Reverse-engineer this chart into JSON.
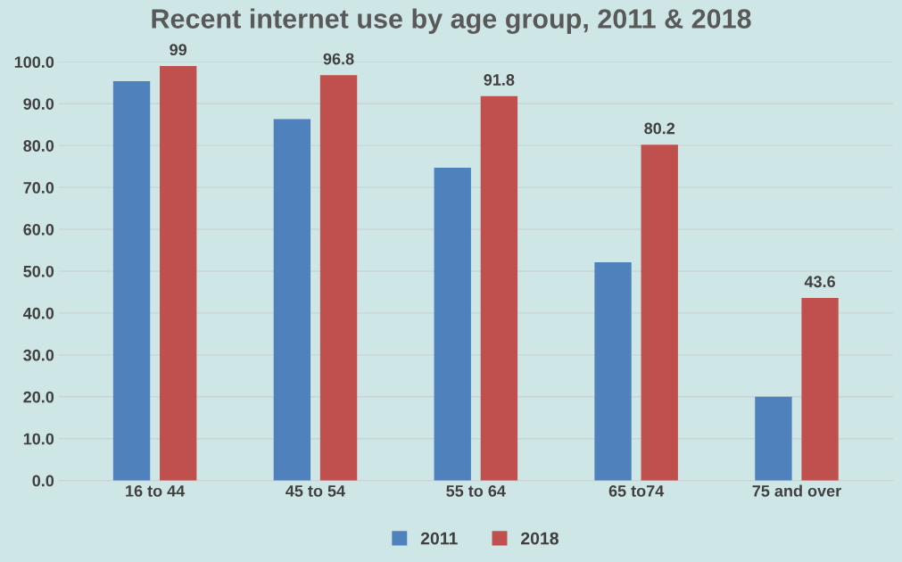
{
  "chart_data": {
    "type": "bar",
    "title": "Recent internet use by age group, 2011 & 2018",
    "categories": [
      "16 to 44",
      "45 to 54",
      "55 to 64",
      "65 to74",
      "75 and over"
    ],
    "series": [
      {
        "name": "2011",
        "color": "#4f81bd",
        "values": [
          95.4,
          86.3,
          74.7,
          52.1,
          20.0
        ]
      },
      {
        "name": "2018",
        "color": "#c0504d",
        "values": [
          99,
          96.8,
          91.8,
          80.2,
          43.6
        ],
        "value_labels": [
          "99",
          "96.8",
          "91.8",
          "80.2",
          "43.6"
        ]
      }
    ],
    "ylim": [
      0,
      100
    ],
    "yticks": [
      {
        "value": 0,
        "label": "0.0"
      },
      {
        "value": 10,
        "label": "10.0"
      },
      {
        "value": 20,
        "label": "20.0"
      },
      {
        "value": 30,
        "label": "30.0"
      },
      {
        "value": 40,
        "label": "40.0"
      },
      {
        "value": 50,
        "label": "50.0"
      },
      {
        "value": 60,
        "label": "60.0"
      },
      {
        "value": 70,
        "label": "70.0"
      },
      {
        "value": 80,
        "label": "80.0"
      },
      {
        "value": 90,
        "label": "90.0"
      },
      {
        "value": 100,
        "label": "100.0"
      }
    ],
    "grid": "y",
    "legend": "bottom"
  }
}
